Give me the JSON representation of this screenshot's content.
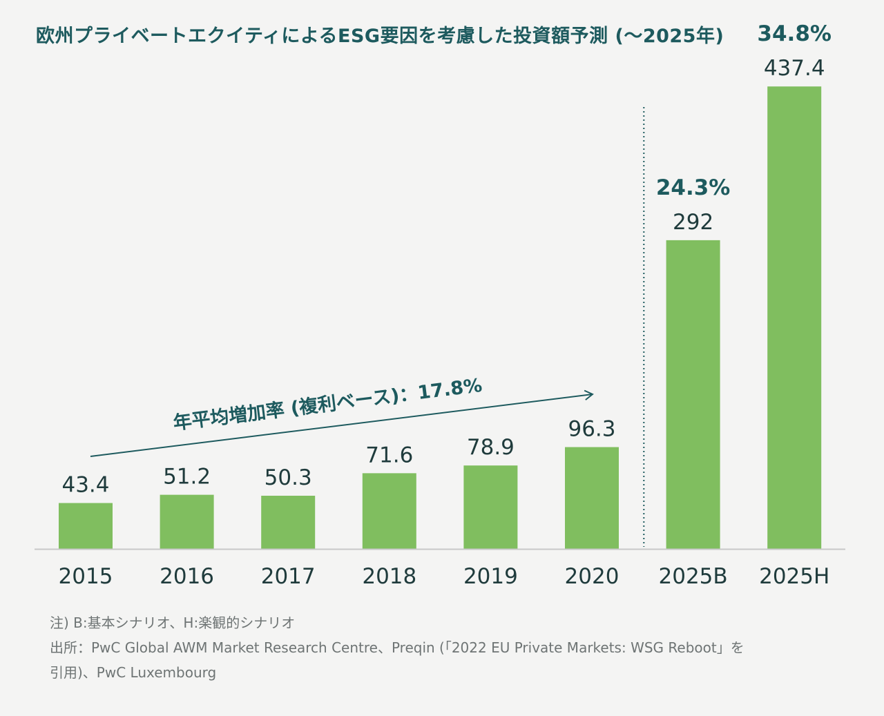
{
  "colors": {
    "bar": "#80be5f",
    "title": "#1d5a5e",
    "text": "#1f3b3c",
    "note": "#6e7474",
    "axis": "#c8c8c8"
  },
  "chart_data": {
    "type": "bar",
    "title": "欧州プライベートエクイティによるESG要因を考慮した投資額予測 (〜2025年)",
    "categories": [
      "2015",
      "2016",
      "2017",
      "2018",
      "2019",
      "2020",
      "2025B",
      "2025H"
    ],
    "values": [
      43.4,
      51.2,
      50.3,
      71.6,
      78.9,
      96.3,
      292,
      437.4
    ],
    "value_labels": [
      "43.4",
      "51.2",
      "50.3",
      "71.6",
      "78.9",
      "96.3",
      "292",
      "437.4"
    ],
    "growth_labels": [
      "",
      "",
      "",
      "",
      "",
      "",
      "24.3%",
      "34.8%"
    ],
    "ylim": [
      0,
      480
    ],
    "grid": false,
    "legend": "none",
    "annotations": {
      "cagr": "年平均増加率 (複利ベース)：17.8%",
      "divider_between": [
        "2020",
        "2025B"
      ]
    }
  },
  "notes": {
    "line1": "注) B:基本シナリオ、H:楽観的シナリオ",
    "line2": "出所：PwC Global AWM Market Research Centre、Preqin (「2022 EU Private Markets: WSG Reboot」を",
    "line3": "引用)、PwC Luxembourg"
  }
}
